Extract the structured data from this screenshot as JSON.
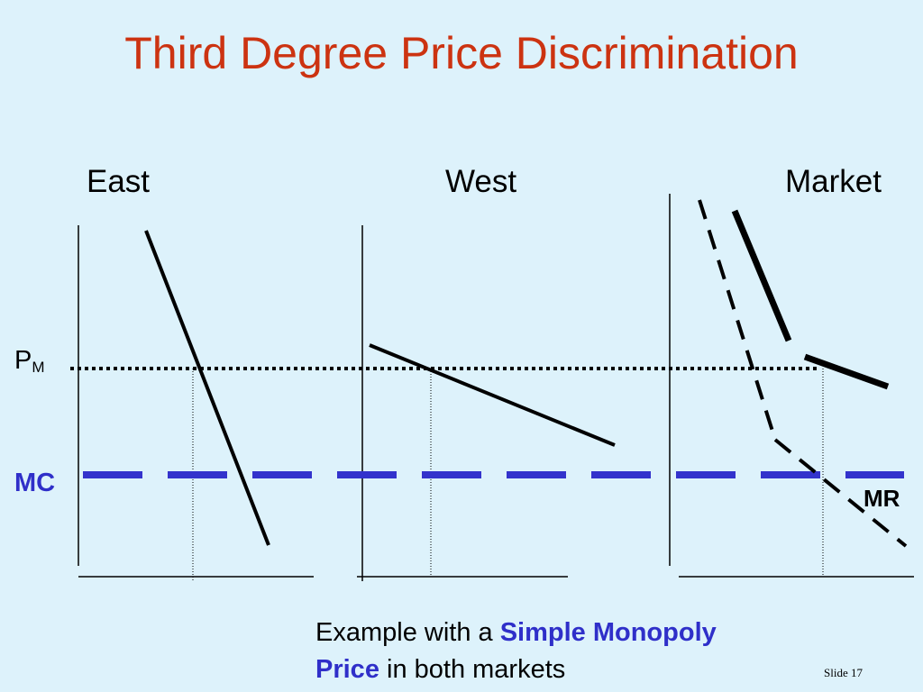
{
  "title": "Third Degree Price Discrimination",
  "panels": {
    "east": "East",
    "west": "West",
    "market": "Market"
  },
  "labels": {
    "pm_main": "P",
    "pm_sub": "M",
    "mc": "MC",
    "mr": "MR"
  },
  "caption": {
    "part1": "Example with a ",
    "emph1": "Simple Monopoly",
    "emph2": "Price",
    "part2": " in both markets"
  },
  "slide_number": "Slide 17",
  "colors": {
    "title": "#cc3311",
    "mc_line": "#3333cc",
    "background": "#ddf2fb"
  }
}
